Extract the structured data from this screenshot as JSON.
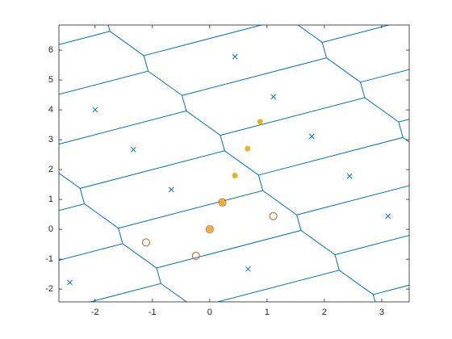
{
  "chart_data": {
    "type": "scatter",
    "xlim": [
      -2.63,
      3.48
    ],
    "ylim": [
      -2.43,
      6.84
    ],
    "xticks": [
      -2,
      -1,
      0,
      1,
      2,
      3
    ],
    "yticks": [
      -2,
      -1,
      0,
      1,
      2,
      3,
      4,
      5,
      6
    ],
    "box": true,
    "edges": {
      "color": "#0072BD",
      "lines": [
        {
          "x": [
            -1.74,
            -1.815,
            -2.407,
            -4.926
          ],
          "y": [
            6.63,
            7.149,
            7.963,
            6.704
          ]
        },
        {
          "x": [
            -1.074,
            -1.149,
            -1.741,
            -4.26
          ],
          "y": [
            5.296,
            5.815,
            6.629,
            5.37
          ]
        },
        {
          "x": [
            -0.407,
            -0.482,
            -1.074,
            -3.593
          ],
          "y": [
            3.963,
            4.482,
            5.296,
            4.037
          ]
        },
        {
          "x": [
            0.26,
            0.185,
            -0.407,
            -2.926
          ],
          "y": [
            2.63,
            3.149,
            3.963,
            2.704
          ]
        },
        {
          "x": [
            0.926,
            0.851,
            0.259,
            -2.26
          ],
          "y": [
            1.296,
            1.815,
            2.629,
            1.37
          ]
        },
        {
          "x": [
            1.593,
            1.518,
            0.926,
            -1.593
          ],
          "y": [
            -0.037,
            0.482,
            1.296,
            0.037
          ]
        },
        {
          "x": [
            2.26,
            2.185,
            1.593,
            -0.926
          ],
          "y": [
            -1.37,
            -0.851,
            -0.037,
            -1.296
          ]
        },
        {
          "x": [
            2.926,
            2.851,
            2.259,
            -0.26
          ],
          "y": [
            -2.704,
            -2.185,
            -1.371,
            -2.63
          ]
        },
        {
          "x": [
            2.037,
            1.962,
            1.37,
            -1.149
          ],
          "y": [
            5.741,
            6.26,
            7.074,
            5.815
          ]
        },
        {
          "x": [
            2.704,
            2.629,
            2.037,
            -0.482
          ],
          "y": [
            4.407,
            4.926,
            5.74,
            4.481
          ]
        },
        {
          "x": [
            3.371,
            3.296,
            2.704,
            0.185
          ],
          "y": [
            3.074,
            3.593,
            4.407,
            3.148
          ]
        },
        {
          "x": [
            4.037,
            3.962,
            3.37,
            0.851
          ],
          "y": [
            1.741,
            2.26,
            3.074,
            1.815
          ]
        },
        {
          "x": [
            4.704,
            4.629,
            4.037,
            1.518
          ],
          "y": [
            0.407,
            0.926,
            1.74,
            0.481
          ]
        },
        {
          "x": [
            5.371,
            5.296,
            4.704,
            2.185
          ],
          "y": [
            -0.926,
            -0.407,
            0.407,
            -0.852
          ]
        },
        {
          "x": [
            6.037,
            5.962,
            5.37,
            2.851
          ],
          "y": [
            -2.259,
            -1.74,
            -0.926,
            -2.185
          ]
        },
        {
          "x": [
            -2.185,
            -2.26,
            -2.852,
            -5.371
          ],
          "y": [
            0.852,
            1.371,
            2.185,
            0.926
          ]
        },
        {
          "x": [
            -1.518,
            -1.593,
            -2.185,
            -4.704
          ],
          "y": [
            -0.481,
            0.038,
            0.852,
            -0.407
          ]
        },
        {
          "x": [
            -0.851,
            -0.926,
            -1.518,
            -4.037
          ],
          "y": [
            -1.815,
            -1.296,
            -0.482,
            -1.741
          ]
        },
        {
          "x": [
            -0.185,
            -0.26,
            -0.852,
            -3.371
          ],
          "y": [
            -3.148,
            -2.629,
            -1.815,
            -3.074
          ]
        },
        {
          "x": [
            5.149,
            5.074,
            4.482,
            1.963
          ],
          "y": [
            6.185,
            6.704,
            7.518,
            6.259
          ]
        },
        {
          "x": [
            5.815,
            5.74,
            5.148,
            2.629
          ],
          "y": [
            4.852,
            5.371,
            6.185,
            4.926
          ]
        },
        {
          "x": [
            6.482,
            6.407,
            5.815,
            3.296
          ],
          "y": [
            3.519,
            4.038,
            4.852,
            3.593
          ]
        }
      ]
    },
    "series": [
      {
        "marker": "x",
        "color": "#0072BD",
        "x": [
          0.44,
          1.11,
          -2.0,
          -1.33,
          1.78,
          -0.67,
          2.44,
          3.11,
          -2.44,
          0.67
        ],
        "y": [
          5.78,
          4.44,
          4.0,
          2.67,
          3.11,
          1.33,
          1.78,
          0.44,
          -1.78,
          -1.33
        ]
      },
      {
        "marker": "circle",
        "color": "#D95319",
        "x": [
          -1.11,
          -0.24,
          0,
          0.22,
          1.11
        ],
        "y": [
          -0.44,
          -0.89,
          0,
          0.9,
          0.44
        ]
      },
      {
        "marker": "dot",
        "color": "#EDB120",
        "x": [
          0,
          0.22,
          0.44,
          0.66,
          0.88
        ],
        "y": [
          0,
          0.9,
          1.8,
          2.7,
          3.6
        ]
      }
    ]
  }
}
